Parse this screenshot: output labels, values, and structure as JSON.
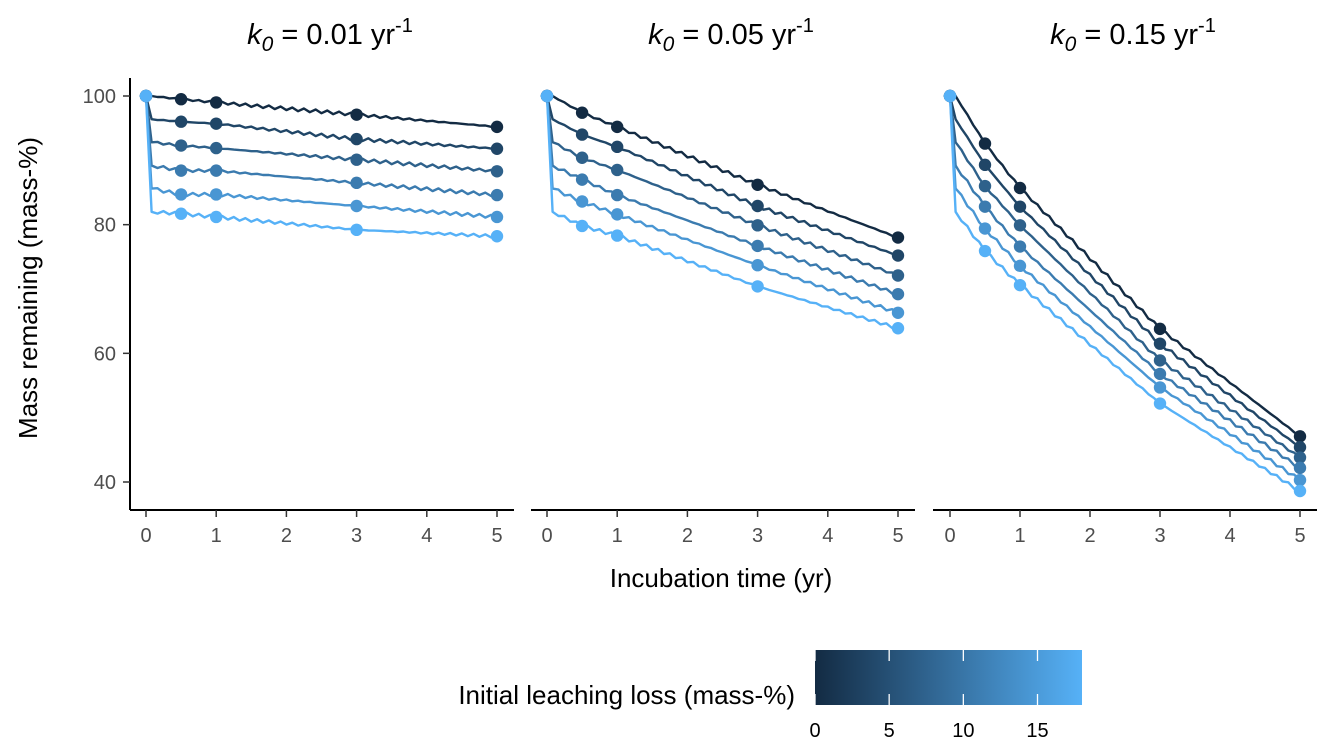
{
  "chart_data": {
    "type": "line",
    "panels": [
      {
        "title": {
          "k": "k",
          "sub": "0",
          "eq": " = 0.01 yr",
          "sup": "-1"
        },
        "x": [
          0,
          0.5,
          1,
          3,
          5
        ],
        "series": [
          {
            "leaching": 0,
            "values": [
              100,
              99.5,
              99.0,
              97.1,
              95.2
            ]
          },
          {
            "leaching": 3.6,
            "values": [
              100,
              96.0,
              95.7,
              93.3,
              91.8
            ]
          },
          {
            "leaching": 7.2,
            "values": [
              100,
              92.3,
              91.9,
              90.1,
              88.3
            ]
          },
          {
            "leaching": 10.8,
            "values": [
              100,
              88.4,
              88.4,
              86.5,
              84.6
            ]
          },
          {
            "leaching": 14.4,
            "values": [
              100,
              84.7,
              84.7,
              82.9,
              81.2
            ]
          },
          {
            "leaching": 18,
            "values": [
              100,
              81.7,
              81.2,
              79.2,
              78.2
            ]
          }
        ]
      },
      {
        "title": {
          "k": "k",
          "sub": "0",
          "eq": " = 0.05 yr",
          "sup": "-1"
        },
        "x": [
          0,
          0.5,
          1,
          3,
          5
        ],
        "series": [
          {
            "leaching": 0,
            "values": [
              100,
              97.4,
              95.2,
              86.2,
              78.0
            ]
          },
          {
            "leaching": 3.6,
            "values": [
              100,
              94.0,
              92.1,
              82.9,
              75.2
            ]
          },
          {
            "leaching": 7.2,
            "values": [
              100,
              90.4,
              88.5,
              79.9,
              72.1
            ]
          },
          {
            "leaching": 10.8,
            "values": [
              100,
              87.0,
              84.6,
              76.7,
              69.2
            ]
          },
          {
            "leaching": 14.4,
            "values": [
              100,
              83.6,
              81.6,
              73.7,
              66.3
            ]
          },
          {
            "leaching": 18,
            "values": [
              100,
              79.8,
              78.3,
              70.4,
              63.9
            ]
          }
        ]
      },
      {
        "title": {
          "k": "k",
          "sub": "0",
          "eq": " = 0.15 yr",
          "sup": "-1"
        },
        "x": [
          0,
          0.5,
          1,
          3,
          5
        ],
        "series": [
          {
            "leaching": 0,
            "values": [
              100,
              92.6,
              85.7,
              63.8,
              47.1
            ]
          },
          {
            "leaching": 3.6,
            "values": [
              100,
              89.3,
              82.8,
              61.5,
              45.4
            ]
          },
          {
            "leaching": 7.2,
            "values": [
              100,
              86.0,
              79.9,
              58.9,
              43.8
            ]
          },
          {
            "leaching": 10.8,
            "values": [
              100,
              82.8,
              76.6,
              56.8,
              42.2
            ]
          },
          {
            "leaching": 14.4,
            "values": [
              100,
              79.4,
              73.6,
              54.7,
              40.3
            ]
          },
          {
            "leaching": 18,
            "values": [
              100,
              75.9,
              70.6,
              52.2,
              38.6
            ]
          }
        ]
      }
    ],
    "ylabel": "Mass remaining (mass-%)",
    "xlabel": "Incubation time (yr)",
    "xlim": [
      0,
      5
    ],
    "ylim": [
      36.5,
      102.5
    ],
    "xticks": [
      "0",
      "1",
      "2",
      "3",
      "4",
      "5"
    ],
    "yticks": [
      "40",
      "60",
      "80",
      "100"
    ],
    "legend": {
      "title": "Initial leaching loss (mass-%)",
      "range": [
        0,
        18
      ],
      "ticks": [
        "0",
        "5",
        "10",
        "15"
      ],
      "color_low": "#132B43",
      "color_high": "#56B1F7",
      "position": "bottom"
    }
  }
}
